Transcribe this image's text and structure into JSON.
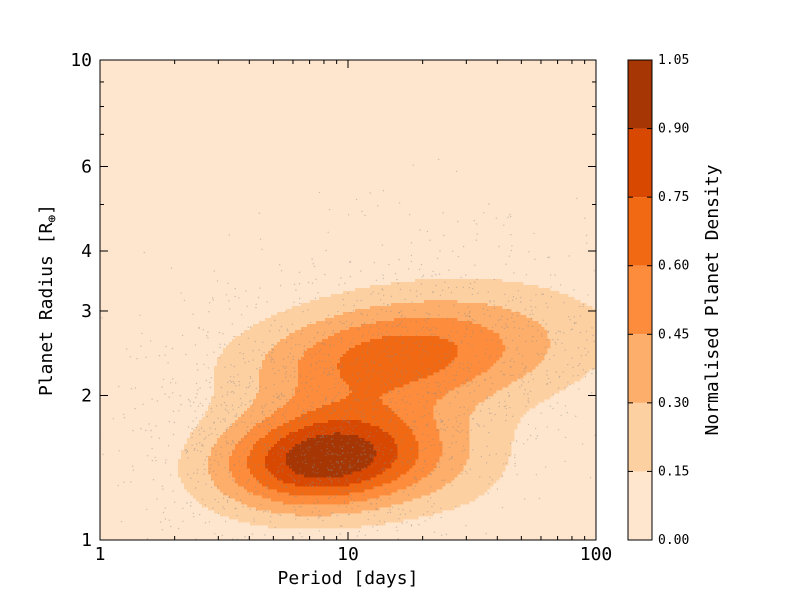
{
  "chart_data": {
    "type": "contour_density",
    "title": "",
    "xlabel": "Period [days]",
    "ylabel": "Planet Radius [R",
    "ylabel_symbol": "⊕",
    "ylabel_close": "]",
    "x_scale": "log",
    "y_scale": "log",
    "xlim": [
      1,
      100
    ],
    "ylim": [
      1,
      10
    ],
    "x_ticks": [
      1,
      10,
      100
    ],
    "x_tick_labels": [
      "1",
      "10",
      "100"
    ],
    "y_ticks": [
      1,
      2,
      3,
      4,
      6,
      10
    ],
    "y_tick_labels": [
      "1",
      "2",
      "3",
      "4",
      "6",
      "10"
    ],
    "grid": false,
    "colorbar": {
      "label": "Normalised Planet Density",
      "levels": [
        0.0,
        0.15,
        0.3,
        0.45,
        0.6,
        0.75,
        0.9,
        1.05
      ],
      "tick_labels": [
        "0.00",
        "0.15",
        "0.30",
        "0.45",
        "0.60",
        "0.75",
        "0.90",
        "1.05"
      ],
      "colors": [
        "#fee6ce",
        "#fdd0a2",
        "#fdae6b",
        "#fd8d3c",
        "#f16913",
        "#d94801",
        "#a63603"
      ]
    },
    "density_peaks": [
      {
        "period_days": 8,
        "radius_earth": 1.48,
        "density": 1.0
      },
      {
        "period_days": 14,
        "radius_earth": 2.4,
        "density": 0.8
      }
    ],
    "scatter_color": "#8a8a8a"
  }
}
